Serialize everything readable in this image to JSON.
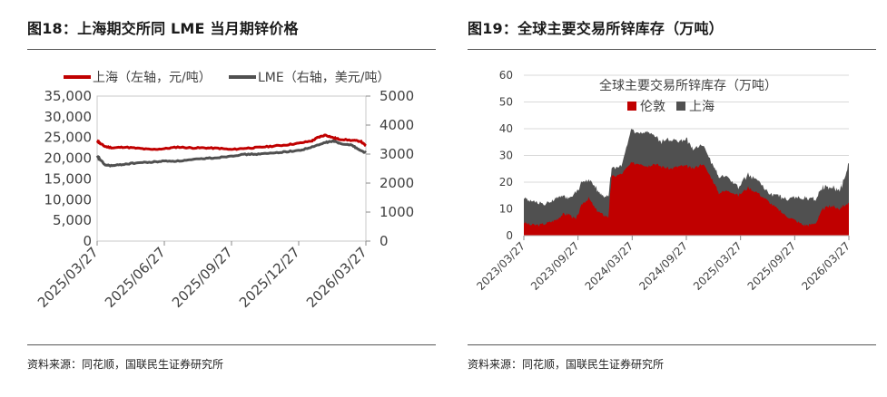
{
  "left_panel": {
    "title": "图18：上海期交所同 LME 当月期锌价格",
    "source": "资料来源：同花顺，国联民生证券研究所"
  },
  "right_panel": {
    "title": "图19：全球主要交易所锌库存（万吨）",
    "source": "资料来源：同花顺，国联民生证券研究所"
  },
  "colors": {
    "shanghai": "#c00000",
    "lme": "#505050",
    "london": "#c00000",
    "shanghai_stock": "#505050"
  },
  "chart_data": [
    {
      "type": "line",
      "title": "",
      "legend": [
        "上海（左轴，元/吨）",
        "LME（右轴，美元/吨）"
      ],
      "legend_position": "top-left",
      "x_ticks": [
        "2025/03/27",
        "2025/06/27",
        "2025/09/27",
        "2025/12/27",
        "2026/03/27"
      ],
      "y_left": {
        "ylim": [
          0,
          35000
        ],
        "ticks": [
          "35,000",
          "30,000",
          "25,000",
          "20,000",
          "15,000",
          "10,000",
          "5,000",
          "0"
        ]
      },
      "y_right": {
        "ylim": [
          0,
          5000
        ],
        "ticks": [
          "5000",
          "4000",
          "3000",
          "2000",
          "1000",
          "0"
        ]
      },
      "series": [
        {
          "name": "上海（左轴，元/吨）",
          "axis": "left",
          "x": [
            0,
            0.01,
            0.03,
            0.06,
            0.1,
            0.15,
            0.2,
            0.25,
            0.3,
            0.35,
            0.4,
            0.45,
            0.5,
            0.55,
            0.6,
            0.65,
            0.7,
            0.75,
            0.8,
            0.82,
            0.85,
            0.88,
            0.9,
            0.95,
            0.98,
            1.0
          ],
          "values": [
            24200,
            23600,
            22800,
            22500,
            22700,
            22400,
            22100,
            22300,
            22700,
            22500,
            22500,
            22400,
            22100,
            22400,
            22600,
            22900,
            23200,
            23600,
            24200,
            25000,
            25600,
            24900,
            24600,
            24300,
            24100,
            23000
          ]
        },
        {
          "name": "LME（右轴，美元/吨）",
          "axis": "right",
          "x": [
            0,
            0.01,
            0.03,
            0.06,
            0.1,
            0.15,
            0.2,
            0.25,
            0.3,
            0.35,
            0.4,
            0.45,
            0.5,
            0.55,
            0.6,
            0.65,
            0.7,
            0.75,
            0.8,
            0.85,
            0.88,
            0.9,
            0.95,
            0.98,
            1.0
          ],
          "values": [
            2930,
            2820,
            2620,
            2600,
            2650,
            2700,
            2720,
            2760,
            2760,
            2800,
            2850,
            2880,
            2940,
            2990,
            3000,
            3030,
            3080,
            3120,
            3240,
            3400,
            3450,
            3380,
            3300,
            3120,
            3050
          ]
        }
      ]
    },
    {
      "type": "area",
      "title": "全球主要交易所锌库存（万吨）",
      "legend": [
        "伦敦",
        "上海"
      ],
      "legend_position": "top-center",
      "x_ticks": [
        "2023/03/27",
        "2023/09/27",
        "2024/03/27",
        "2024/09/27",
        "2025/03/27",
        "2025/09/27",
        "2026/03/27"
      ],
      "ylim": [
        0,
        60
      ],
      "y_ticks": [
        "60",
        "50",
        "40",
        "30",
        "20",
        "10",
        "0"
      ],
      "series": [
        {
          "name": "伦敦",
          "x": [
            0,
            0.02,
            0.05,
            0.08,
            0.1,
            0.12,
            0.14,
            0.16,
            0.18,
            0.2,
            0.22,
            0.24,
            0.26,
            0.27,
            0.3,
            0.33,
            0.36,
            0.38,
            0.4,
            0.42,
            0.45,
            0.48,
            0.5,
            0.52,
            0.55,
            0.58,
            0.6,
            0.63,
            0.66,
            0.69,
            0.72,
            0.75,
            0.78,
            0.8,
            0.83,
            0.86,
            0.88,
            0.9,
            0.92,
            0.94,
            0.95,
            0.97,
            0.98,
            1.0
          ],
          "values": [
            5,
            4,
            4,
            5,
            6,
            8,
            8,
            6,
            12,
            14,
            10,
            8,
            7,
            22,
            23,
            27,
            27,
            26,
            27,
            26,
            25,
            26,
            26,
            25,
            27,
            21,
            16,
            17,
            15,
            18,
            16,
            13,
            10,
            8,
            6,
            4,
            4,
            5,
            10,
            11,
            11,
            10,
            11,
            12
          ]
        },
        {
          "name": "上海",
          "x": [
            0,
            0.02,
            0.05,
            0.08,
            0.1,
            0.12,
            0.14,
            0.16,
            0.18,
            0.2,
            0.22,
            0.24,
            0.26,
            0.27,
            0.3,
            0.33,
            0.36,
            0.38,
            0.4,
            0.42,
            0.45,
            0.48,
            0.5,
            0.52,
            0.55,
            0.58,
            0.6,
            0.63,
            0.66,
            0.69,
            0.72,
            0.75,
            0.78,
            0.8,
            0.83,
            0.86,
            0.88,
            0.9,
            0.92,
            0.94,
            0.95,
            0.97,
            0.98,
            1.0
          ],
          "values": [
            9,
            9,
            8,
            7,
            8,
            7,
            6,
            10,
            8,
            7,
            8,
            7,
            8,
            3,
            3,
            12,
            12,
            13,
            11,
            9,
            11,
            9,
            10,
            7,
            7,
            6,
            6,
            5,
            3,
            5,
            5,
            3,
            5,
            6,
            8,
            10,
            10,
            9,
            8,
            7,
            7,
            7,
            8,
            15
          ]
        }
      ]
    }
  ]
}
